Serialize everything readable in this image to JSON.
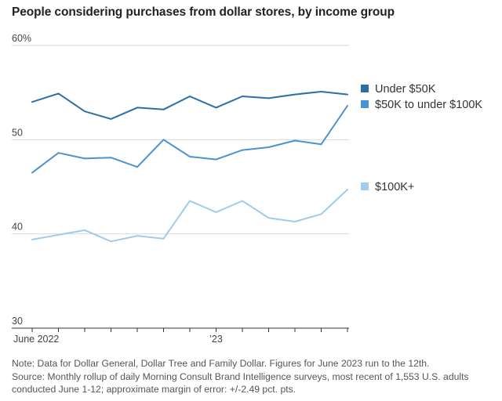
{
  "title": "People considering purchases from dollar stores, by income group",
  "notes": [
    "Note: Data for Dollar General, Dollar Tree and Family Dollar. Figures for June 2023 run to the 12th.",
    "Source: Monthly rollup of daily Morning Consult Brand Intelligence surveys, most recent of 1,553 U.S. adults",
    "conducted June 1-12; approximate margin of error: +/-2.49 pct. pts."
  ],
  "chart_data": {
    "type": "line",
    "title": "People considering purchases from dollar stores, by income group",
    "xlabel": "",
    "ylabel": "",
    "x": [
      "2022-06",
      "2022-07",
      "2022-08",
      "2022-09",
      "2022-10",
      "2022-11",
      "2022-12",
      "2023-01",
      "2023-02",
      "2023-03",
      "2023-04",
      "2023-05",
      "2023-06"
    ],
    "ylim": [
      30,
      60
    ],
    "y_ticks": [
      30,
      40,
      50,
      60
    ],
    "y_tick_labels": [
      "30",
      "40",
      "50",
      "60%"
    ],
    "x_tick_labels": [
      {
        "x": "2022-06",
        "label": "June 2022"
      },
      {
        "x": "2023-01",
        "label": "’23"
      }
    ],
    "grid": true,
    "legend_placement": "right",
    "series": [
      {
        "name": "Under $50K",
        "color": "#2b6fa8",
        "values": [
          54.0,
          54.9,
          53.0,
          52.2,
          53.4,
          53.2,
          54.6,
          53.4,
          54.6,
          54.4,
          54.8,
          55.1,
          54.8
        ]
      },
      {
        "name": "$50K to under $100K",
        "color": "#4a93d1",
        "values": [
          46.5,
          48.6,
          48.0,
          48.1,
          47.1,
          50.0,
          48.2,
          47.9,
          48.9,
          49.2,
          49.9,
          49.5,
          53.6
        ]
      },
      {
        "name": "$100K+",
        "color": "#9fcbec",
        "values": [
          39.4,
          39.9,
          40.4,
          39.2,
          39.8,
          39.5,
          43.5,
          42.3,
          43.5,
          41.7,
          41.3,
          42.1,
          44.7
        ]
      }
    ]
  }
}
